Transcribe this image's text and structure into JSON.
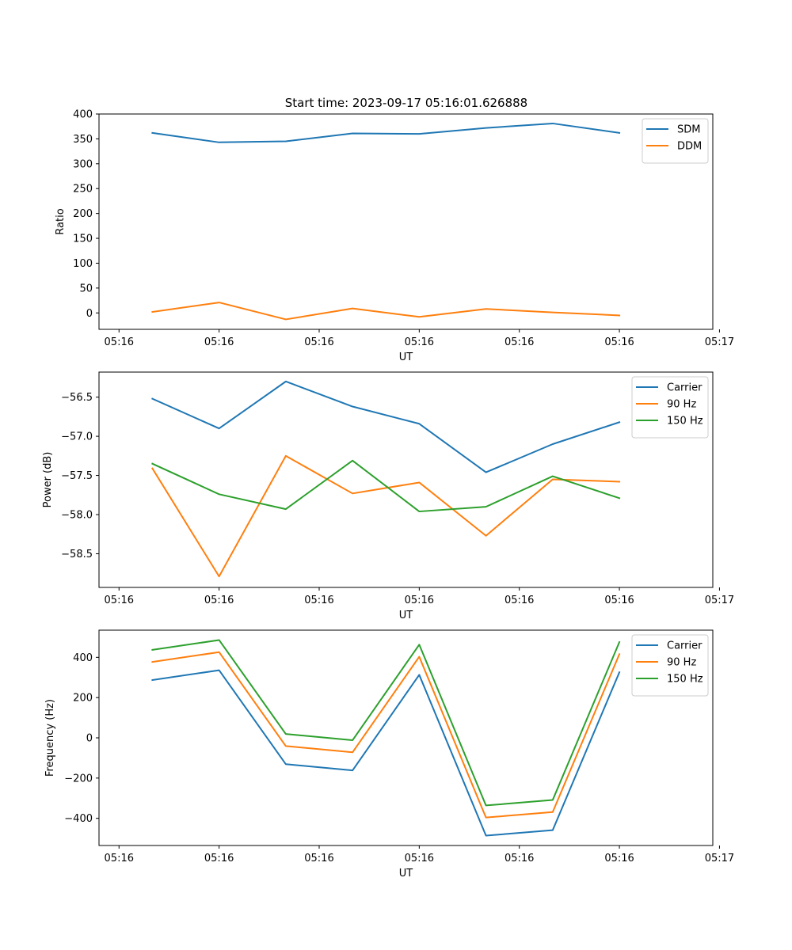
{
  "figure": {
    "title": "Start time: 2023-09-17 05:16:01.626888"
  },
  "colors": {
    "blue": "#1f77b4",
    "orange": "#ff7f0e",
    "green": "#2ca02c"
  },
  "chart_data": [
    {
      "type": "line",
      "title": "Start time: 2023-09-17 05:16:01.626888",
      "xlabel": "UT",
      "ylabel": "Ratio",
      "x": [
        1.0,
        2.0,
        3.0,
        4.0,
        5.0,
        6.0,
        7.0,
        8.0
      ],
      "xlim": [
        0.2,
        9.4
      ],
      "xticks": [
        0.5,
        2.0,
        3.5,
        5.0,
        6.5,
        8.0,
        9.5
      ],
      "xtick_labels": [
        "05:16",
        "05:16",
        "05:16",
        "05:16",
        "05:16",
        "05:16",
        "05:17"
      ],
      "ylim": [
        -33,
        400
      ],
      "yticks": [
        0,
        50,
        100,
        150,
        200,
        250,
        300,
        350,
        400
      ],
      "ytick_labels": [
        "0",
        "50",
        "100",
        "150",
        "200",
        "250",
        "300",
        "350",
        "400"
      ],
      "legend_position": "top-right",
      "series": [
        {
          "name": "SDM",
          "color": "#1f77b4",
          "values": [
            362,
            343,
            345,
            361,
            360,
            372,
            381,
            362
          ]
        },
        {
          "name": "DDM",
          "color": "#ff7f0e",
          "values": [
            2,
            21,
            -13,
            9,
            -8,
            8,
            1,
            -5
          ]
        }
      ]
    },
    {
      "type": "line",
      "title": "",
      "xlabel": "UT",
      "ylabel": "Power (dB)",
      "x": [
        1.0,
        2.0,
        3.0,
        4.0,
        5.0,
        6.0,
        7.0,
        8.0
      ],
      "xlim": [
        0.2,
        9.4
      ],
      "xticks": [
        0.5,
        2.0,
        3.5,
        5.0,
        6.5,
        8.0,
        9.5
      ],
      "xtick_labels": [
        "05:16",
        "05:16",
        "05:16",
        "05:16",
        "05:16",
        "05:16",
        "05:17"
      ],
      "ylim": [
        -58.93,
        -56.18
      ],
      "yticks": [
        -56.5,
        -57.0,
        -57.5,
        -58.0,
        -58.5
      ],
      "ytick_labels": [
        "−56.5",
        "−57.0",
        "−57.5",
        "−58.0",
        "−58.5"
      ],
      "legend_position": "top-right",
      "series": [
        {
          "name": "Carrier",
          "color": "#1f77b4",
          "values": [
            -56.52,
            -56.9,
            -56.3,
            -56.62,
            -56.84,
            -57.46,
            -57.1,
            -56.82
          ]
        },
        {
          "name": "90 Hz",
          "color": "#ff7f0e",
          "values": [
            -57.41,
            -58.79,
            -57.25,
            -57.73,
            -57.59,
            -58.27,
            -57.55,
            -57.58
          ]
        },
        {
          "name": "150 Hz",
          "color": "#2ca02c",
          "values": [
            -57.35,
            -57.74,
            -57.93,
            -57.31,
            -57.96,
            -57.9,
            -57.51,
            -57.79
          ]
        }
      ]
    },
    {
      "type": "line",
      "title": "",
      "xlabel": "UT",
      "ylabel": "Frequency (Hz)",
      "x": [
        1.0,
        2.0,
        3.0,
        4.0,
        5.0,
        6.0,
        7.0,
        8.0
      ],
      "xlim": [
        0.2,
        9.4
      ],
      "xticks": [
        0.5,
        2.0,
        3.5,
        5.0,
        6.5,
        8.0,
        9.5
      ],
      "xtick_labels": [
        "05:16",
        "05:16",
        "05:16",
        "05:16",
        "05:16",
        "05:16",
        "05:17"
      ],
      "ylim": [
        -535,
        535
      ],
      "yticks": [
        400,
        200,
        0,
        -200,
        -400
      ],
      "ytick_labels": [
        "400",
        "200",
        "0",
        "−200",
        "−400"
      ],
      "legend_position": "top-right",
      "series": [
        {
          "name": "Carrier",
          "color": "#1f77b4",
          "values": [
            287,
            336,
            -131,
            -162,
            313,
            -486,
            -459,
            326
          ]
        },
        {
          "name": "90 Hz",
          "color": "#ff7f0e",
          "values": [
            377,
            426,
            -41,
            -72,
            403,
            -396,
            -369,
            416
          ]
        },
        {
          "name": "150 Hz",
          "color": "#2ca02c",
          "values": [
            437,
            486,
            19,
            -12,
            463,
            -336,
            -309,
            476
          ]
        }
      ]
    }
  ]
}
